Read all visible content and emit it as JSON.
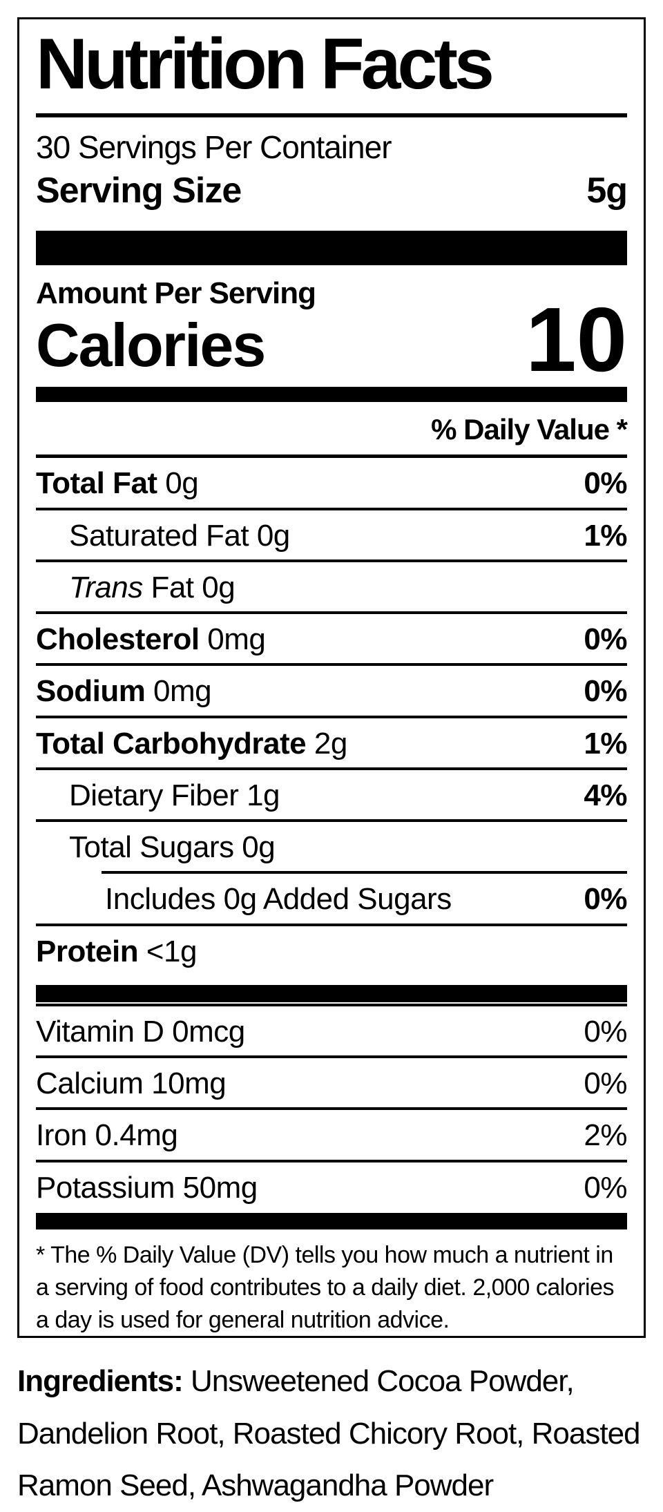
{
  "colors": {
    "text": "#000000",
    "background": "#ffffff"
  },
  "label": {
    "title": "Nutrition Facts",
    "servings_per_container": "30 Servings Per Container",
    "serving_size": {
      "label": "Serving Size",
      "value": "5g"
    },
    "calories": {
      "section_label": "Amount Per Serving",
      "word": "Calories",
      "value": "10"
    },
    "daily_value_header": "% Daily Value *",
    "rows": [
      {
        "bold": "Total Fat",
        "regular": " 0g",
        "dv": "0%"
      },
      {
        "regular": "Saturated Fat 0g",
        "dv": "1%"
      },
      {
        "italic": "Trans",
        "regular": " Fat 0g",
        "dv": ""
      },
      {
        "bold": "Cholesterol",
        "regular": " 0mg",
        "dv": "0%"
      },
      {
        "bold": "Sodium",
        "regular": " 0mg",
        "dv": "0%"
      },
      {
        "bold": "Total Carbohydrate",
        "regular": " 2g",
        "dv": "1%"
      },
      {
        "regular": "Dietary Fiber 1g",
        "dv": "4%"
      },
      {
        "regular": "Total Sugars 0g",
        "dv": ""
      },
      {
        "regular": "Includes 0g Added Sugars",
        "dv": "0%"
      },
      {
        "bold": "Protein",
        "regular": " <1g",
        "dv": ""
      }
    ],
    "vitamins": [
      {
        "regular": "Vitamin D 0mcg",
        "dv": "0%"
      },
      {
        "regular": "Calcium 10mg",
        "dv": "0%"
      },
      {
        "regular": "Iron 0.4mg",
        "dv": "2%"
      },
      {
        "regular": "Potassium 50mg",
        "dv": "0%"
      }
    ],
    "footnote": "* The % Daily Value (DV) tells you how much a nutrient in a serving of food contributes to a daily diet. 2,000 calories a day is used for general nutrition advice.",
    "ingredients": {
      "label": "Ingredients:",
      "text": " Unsweetened Cocoa Powder, Dandelion Root, Roasted Chicory Root, Roasted Ramon Seed, Ashwagandha Powder"
    }
  }
}
